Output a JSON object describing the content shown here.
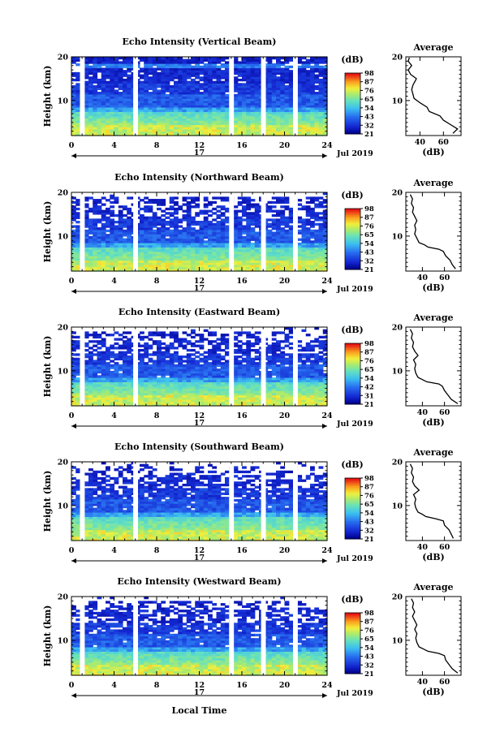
{
  "figure": {
    "xlabel": "Local Time",
    "date_label": "Jul 2019",
    "day_label": "17"
  },
  "chart_data": [
    {
      "type": "heatmap",
      "title": "Echo Intensity (Vertical Beam)",
      "ylabel": "Height (km)",
      "xlim": [
        0,
        24
      ],
      "ylim": [
        2,
        20
      ],
      "xticks": [
        0,
        4,
        8,
        12,
        16,
        20,
        24
      ],
      "yticks": [
        10,
        20
      ],
      "colorbar": {
        "unit": "(dB)",
        "ticks": [
          21,
          32,
          43,
          54,
          65,
          76,
          87,
          98
        ]
      },
      "profile": {
        "title": "Average",
        "xlabel": "(dB)",
        "xticks": [
          40,
          60
        ],
        "yticks": [
          10,
          20
        ],
        "xlim": [
          28,
          75
        ],
        "ylim": [
          2,
          20
        ],
        "points": [
          [
            68,
            2.5
          ],
          [
            72,
            3.5
          ],
          [
            66,
            4.5
          ],
          [
            60,
            5.5
          ],
          [
            57,
            6.5
          ],
          [
            48,
            7.5
          ],
          [
            46,
            8.5
          ],
          [
            40,
            9.5
          ],
          [
            35,
            10.5
          ],
          [
            34,
            11.5
          ],
          [
            33,
            12.5
          ],
          [
            34,
            13.5
          ],
          [
            36,
            14.5
          ],
          [
            37,
            15
          ],
          [
            32,
            16
          ],
          [
            30,
            17
          ],
          [
            33,
            18
          ],
          [
            30,
            19
          ],
          [
            31,
            19.8
          ]
        ]
      },
      "gaps": [
        1,
        6,
        15,
        18,
        21
      ]
    },
    {
      "type": "heatmap",
      "title": "Echo Intensity (Northward Beam)",
      "ylabel": "Height (km)",
      "xlim": [
        0,
        24
      ],
      "ylim": [
        2,
        20
      ],
      "xticks": [
        0,
        4,
        8,
        12,
        16,
        20,
        24
      ],
      "yticks": [
        10,
        20
      ],
      "colorbar": {
        "unit": "(dB)",
        "ticks": [
          21,
          32,
          43,
          54,
          65,
          76,
          87,
          98
        ]
      },
      "profile": {
        "title": "Average",
        "xlabel": "(dB)",
        "xticks": [
          40,
          60
        ],
        "yticks": [
          10,
          20
        ],
        "xlim": [
          25,
          75
        ],
        "ylim": [
          2,
          20
        ],
        "points": [
          [
            70,
            2.5
          ],
          [
            67,
            3.5
          ],
          [
            65,
            4.5
          ],
          [
            61,
            5.5
          ],
          [
            59,
            6.5
          ],
          [
            55,
            7
          ],
          [
            45,
            7.5
          ],
          [
            42,
            8
          ],
          [
            37,
            8.5
          ],
          [
            35,
            9.5
          ],
          [
            33,
            10.5
          ],
          [
            34,
            11.5
          ],
          [
            33,
            12.5
          ],
          [
            35,
            13.5
          ],
          [
            33,
            14.5
          ],
          [
            31,
            15.5
          ],
          [
            32,
            16.5
          ],
          [
            30,
            17.5
          ],
          [
            31,
            18.5
          ],
          [
            29,
            19.5
          ]
        ]
      },
      "gaps": [
        1,
        6,
        15,
        18,
        21
      ]
    },
    {
      "type": "heatmap",
      "title": "Echo Intensity (Eastward Beam)",
      "ylabel": "Height (km)",
      "xlim": [
        0,
        24
      ],
      "ylim": [
        2,
        20
      ],
      "xticks": [
        0,
        4,
        8,
        12,
        16,
        20,
        24
      ],
      "yticks": [
        10,
        20
      ],
      "colorbar": {
        "unit": "(dB)",
        "ticks": [
          21,
          31,
          42,
          54,
          65,
          76,
          87,
          98
        ]
      },
      "profile": {
        "title": "Average",
        "xlabel": "(dB)",
        "xticks": [
          40,
          60
        ],
        "yticks": [
          10,
          20
        ],
        "xlim": [
          25,
          75
        ],
        "ylim": [
          2,
          20
        ],
        "points": [
          [
            72,
            2.5
          ],
          [
            66,
            3.5
          ],
          [
            63,
            4.5
          ],
          [
            60,
            5.5
          ],
          [
            58,
            6.5
          ],
          [
            55,
            7
          ],
          [
            44,
            7.5
          ],
          [
            40,
            8
          ],
          [
            36,
            8.5
          ],
          [
            34,
            9.5
          ],
          [
            33,
            10.5
          ],
          [
            34,
            11.5
          ],
          [
            32,
            12.5
          ],
          [
            36,
            13.5
          ],
          [
            33,
            14.5
          ],
          [
            31,
            15.5
          ],
          [
            32,
            16.5
          ],
          [
            30,
            17.5
          ],
          [
            31,
            18.5
          ],
          [
            29,
            19.5
          ]
        ]
      },
      "gaps": [
        1,
        6,
        15,
        18,
        21
      ]
    },
    {
      "type": "heatmap",
      "title": "Echo Intensity (Southward Beam)",
      "ylabel": "Height (km)",
      "xlim": [
        0,
        24
      ],
      "ylim": [
        2,
        20
      ],
      "xticks": [
        0,
        4,
        8,
        12,
        16,
        20,
        24
      ],
      "yticks": [
        10,
        20
      ],
      "colorbar": {
        "unit": "(dB)",
        "ticks": [
          21,
          32,
          43,
          54,
          65,
          76,
          87,
          98
        ]
      },
      "profile": {
        "title": "Average",
        "xlabel": "(dB)",
        "xticks": [
          40,
          60
        ],
        "yticks": [
          10,
          20
        ],
        "xlim": [
          25,
          75
        ],
        "ylim": [
          2,
          20
        ],
        "points": [
          [
            68,
            2.5
          ],
          [
            66,
            3.5
          ],
          [
            64,
            4.5
          ],
          [
            60,
            5.5
          ],
          [
            59,
            6.5
          ],
          [
            52,
            7
          ],
          [
            43,
            7.5
          ],
          [
            40,
            8
          ],
          [
            36,
            8.5
          ],
          [
            34,
            9.5
          ],
          [
            33,
            10.5
          ],
          [
            34,
            11.5
          ],
          [
            32,
            12.5
          ],
          [
            37,
            13.5
          ],
          [
            33,
            14.5
          ],
          [
            31,
            15.5
          ],
          [
            32,
            16.5
          ],
          [
            30,
            17.5
          ],
          [
            31,
            18.5
          ],
          [
            29,
            19.5
          ]
        ]
      },
      "gaps": [
        1,
        6,
        15,
        18,
        21
      ]
    },
    {
      "type": "heatmap",
      "title": "Echo Intensity (Westward Beam)",
      "ylabel": "Height (km)",
      "xlim": [
        0,
        24
      ],
      "ylim": [
        2,
        20
      ],
      "xticks": [
        0,
        4,
        8,
        12,
        16,
        20,
        24
      ],
      "yticks": [
        10,
        20
      ],
      "colorbar": {
        "unit": "(dB)",
        "ticks": [
          21,
          32,
          43,
          54,
          65,
          76,
          87,
          98
        ]
      },
      "profile": {
        "title": "Average",
        "xlabel": "(dB)",
        "xticks": [
          40,
          60
        ],
        "yticks": [
          10,
          20
        ],
        "xlim": [
          25,
          75
        ],
        "ylim": [
          2,
          20
        ],
        "points": [
          [
            72,
            2.5
          ],
          [
            67,
            3.5
          ],
          [
            64,
            4.5
          ],
          [
            61,
            5.5
          ],
          [
            60,
            6.5
          ],
          [
            55,
            7
          ],
          [
            45,
            7.5
          ],
          [
            41,
            8
          ],
          [
            37,
            8.5
          ],
          [
            35,
            9.5
          ],
          [
            34,
            10.5
          ],
          [
            35,
            11.5
          ],
          [
            33,
            12.5
          ],
          [
            35,
            13.5
          ],
          [
            33,
            14.5
          ],
          [
            31,
            15.5
          ],
          [
            33,
            16.5
          ],
          [
            31,
            17.5
          ],
          [
            32,
            18.5
          ],
          [
            30,
            19.5
          ]
        ]
      },
      "gaps": [
        1,
        6,
        15,
        18,
        21
      ]
    }
  ]
}
